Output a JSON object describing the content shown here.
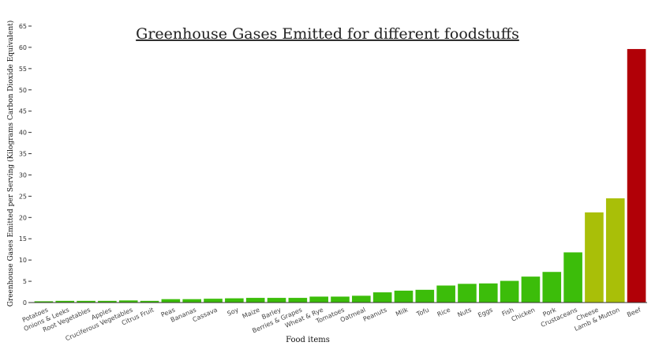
{
  "chart_data": {
    "type": "bar",
    "title": "Greenhouse Gases Emitted for different foodstuffs",
    "xlabel": "Food items",
    "ylabel": "Greenhouse Gases Emitted per Serving (Kilograms Carbon Dioxide Equivalent)",
    "ylim": [
      0,
      65
    ],
    "yticks": [
      0,
      5,
      10,
      15,
      20,
      25,
      30,
      35,
      40,
      45,
      50,
      55,
      60,
      65
    ],
    "grid": false,
    "categories": [
      "Potatoes",
      "Onions & Leeks",
      "Root Vegetables",
      "Apples",
      "Cruciferous Vegetables",
      "Citrus Fruit",
      "Peas",
      "Bananas",
      "Cassava",
      "Soy",
      "Maize",
      "Barley",
      "Berries & Grapes",
      "Wheat & Rye",
      "Tomatoes",
      "Oatmeal",
      "Peanuts",
      "Milk",
      "Tofu",
      "Rice",
      "Nuts",
      "Eggs",
      "Fish",
      "Chicken",
      "Pork",
      "Crustaceans",
      "Cheese",
      "Lamb & Mutton",
      "Beef"
    ],
    "values": [
      0.3,
      0.4,
      0.4,
      0.4,
      0.5,
      0.4,
      0.8,
      0.8,
      0.9,
      1.0,
      1.1,
      1.1,
      1.1,
      1.4,
      1.4,
      1.6,
      2.4,
      2.8,
      3.0,
      4.0,
      4.4,
      4.5,
      5.1,
      6.1,
      7.2,
      11.8,
      21.2,
      24.5,
      59.6
    ],
    "colors": {
      "low": "#3cbd0a",
      "mid": "#a9bf08",
      "high": "#b10007",
      "axis": "#333333"
    }
  }
}
